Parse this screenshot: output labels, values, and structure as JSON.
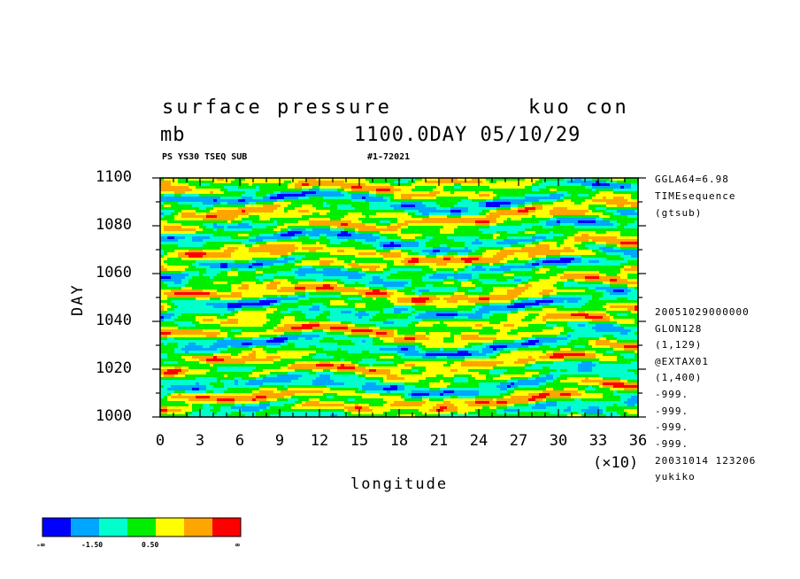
{
  "header": {
    "title_left": "surface pressure",
    "title_right": "kuo con",
    "units": "mb",
    "time_label": "1100.0DAY 05/10/29",
    "run_label": "PS YS30 TSEQ SUB",
    "run_id": "#1-72021"
  },
  "right_info": {
    "top": [
      "GGLA64=6.98",
      "TIMEsequence",
      "(gtsub)"
    ],
    "bottom": [
      "20051029000000",
      "GLON128",
      "(1,129)",
      "@EXTAX01",
      "(1,400)",
      "-999.",
      "-999.",
      "-999.",
      "-999.",
      "20031014 123206",
      "yukiko"
    ]
  },
  "colorbar": {
    "colors": [
      "#0000ff",
      "#00a6ff",
      "#00ffcc",
      "#00ee00",
      "#ffff00",
      "#ffa500",
      "#ff0000"
    ],
    "labels": [
      "-∞",
      "-1.50",
      "0.50",
      "∞"
    ]
  },
  "chart_data": {
    "type": "heatmap",
    "title": "surface pressure",
    "xlabel": "longitude",
    "ylabel": "DAY",
    "x_tick_labels": [
      "0",
      "3",
      "6",
      "9",
      "12",
      "15",
      "18",
      "21",
      "24",
      "27",
      "30",
      "33",
      "36"
    ],
    "x_multiplier": "(×10)",
    "y_tick_labels": [
      "1000",
      "1020",
      "1040",
      "1060",
      "1080",
      "1100"
    ],
    "xlim": [
      0,
      360
    ],
    "ylim": [
      1000,
      1100
    ],
    "colormap": [
      "#0000ff",
      "#00a6ff",
      "#00ffcc",
      "#00ee00",
      "#ffff00",
      "#ffa500",
      "#ff0000"
    ],
    "grid": false
  }
}
